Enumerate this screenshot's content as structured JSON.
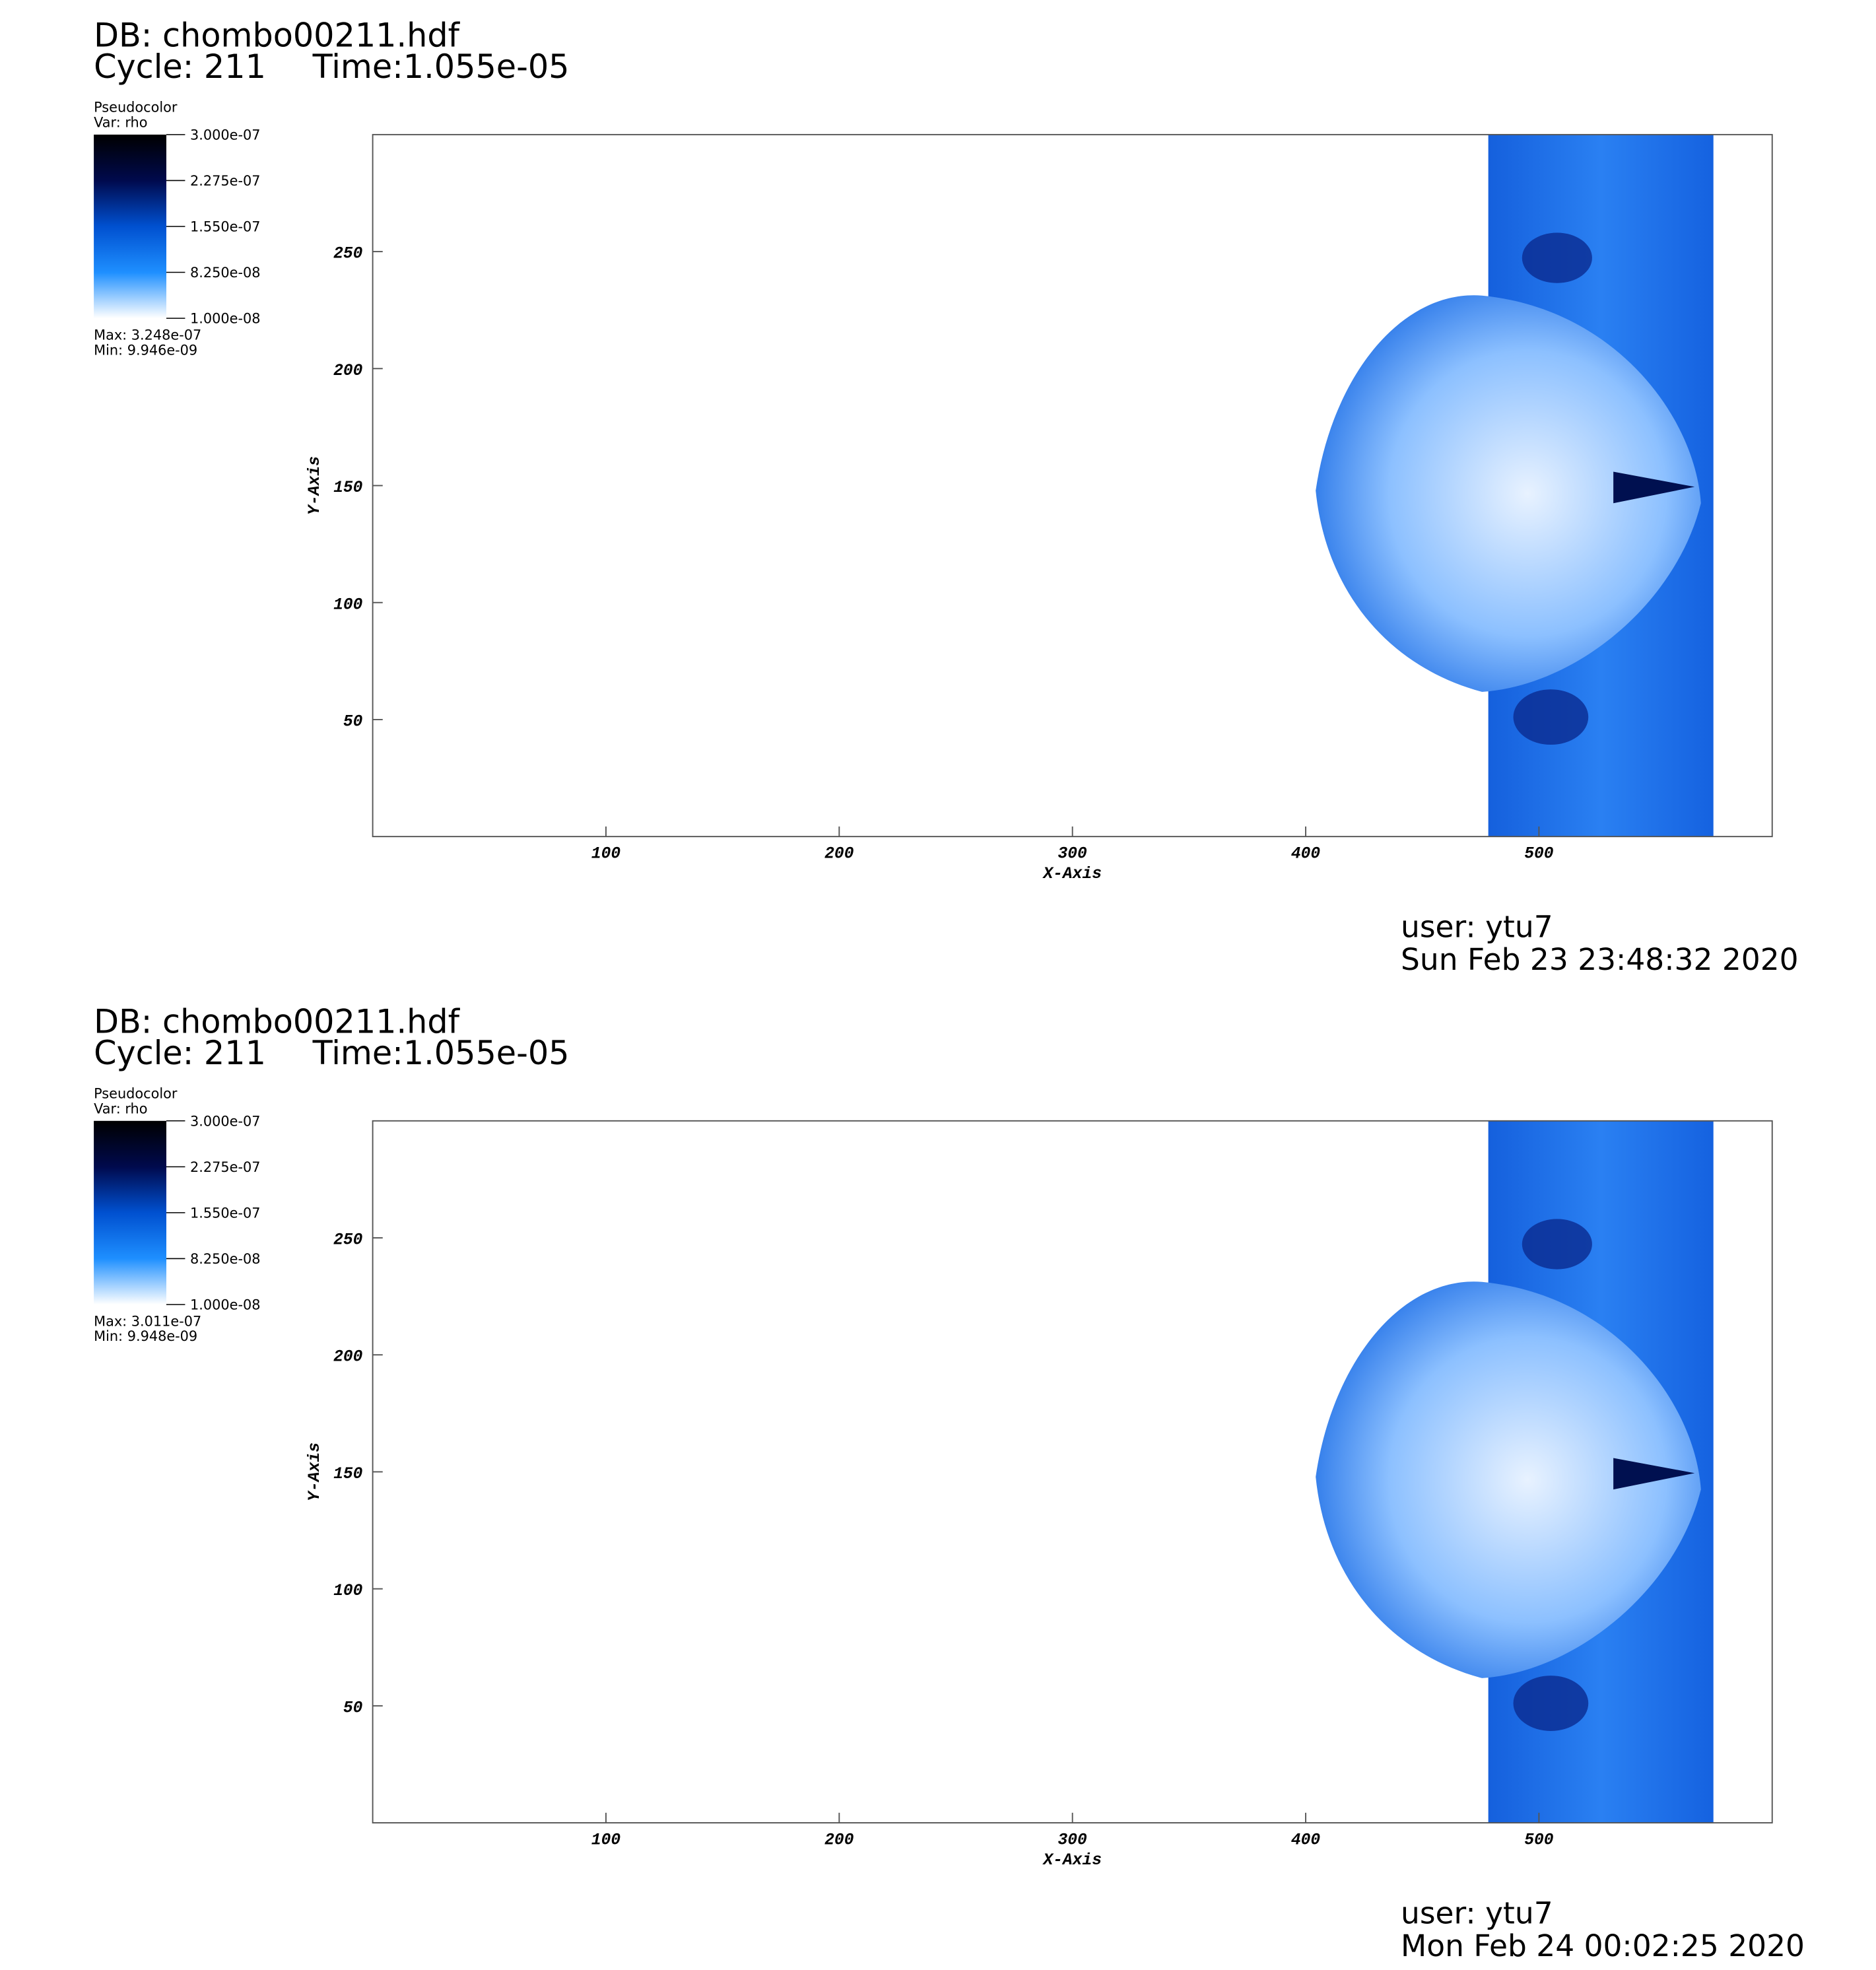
{
  "chart_data": [
    {
      "type": "pseudocolor",
      "database": "DB: chombo00211.hdf",
      "cycle": "Cycle: 211",
      "time": "Time:1.055e-05",
      "legend_title": "Pseudocolor",
      "variable": "Var: rho",
      "colormap": [
        "#000000",
        "#000a4d",
        "#0050d0",
        "#1e8fff",
        "#ffffff"
      ],
      "colorbar_lim": [
        1e-08,
        3e-07
      ],
      "colorbar_ticks": [
        {
          "value": 3e-07,
          "label": "3.000e-07"
        },
        {
          "value": 2.275e-07,
          "label": "2.275e-07"
        },
        {
          "value": 1.55e-07,
          "label": "1.550e-07"
        },
        {
          "value": 8.25e-08,
          "label": "8.250e-08"
        },
        {
          "value": 1e-08,
          "label": "1.000e-08"
        }
      ],
      "max_label": "Max:  3.248e-07",
      "min_label": "Min:  9.946e-09",
      "xlabel": "X-Axis",
      "ylabel": "Y-Axis",
      "xlim": [
        0,
        600
      ],
      "ylim": [
        0,
        300
      ],
      "xticks": [
        100,
        200,
        300,
        400,
        500
      ],
      "yticks": [
        50,
        100,
        150,
        200,
        250
      ],
      "user": "user: ytu7",
      "date": "Sun Feb 23 23:48:32 2020"
    },
    {
      "type": "pseudocolor",
      "database": "DB: chombo00211.hdf",
      "cycle": "Cycle: 211",
      "time": "Time:1.055e-05",
      "legend_title": "Pseudocolor",
      "variable": "Var: rho",
      "colormap": [
        "#000000",
        "#000a4d",
        "#0050d0",
        "#1e8fff",
        "#ffffff"
      ],
      "colorbar_lim": [
        1e-08,
        3e-07
      ],
      "colorbar_ticks": [
        {
          "value": 3e-07,
          "label": "3.000e-07"
        },
        {
          "value": 2.275e-07,
          "label": "2.275e-07"
        },
        {
          "value": 1.55e-07,
          "label": "1.550e-07"
        },
        {
          "value": 8.25e-08,
          "label": "8.250e-08"
        },
        {
          "value": 1e-08,
          "label": "1.000e-08"
        }
      ],
      "max_label": "Max:  3.011e-07",
      "min_label": "Min:  9.948e-09",
      "xlabel": "X-Axis",
      "ylabel": "Y-Axis",
      "xlim": [
        0,
        600
      ],
      "ylim": [
        0,
        300
      ],
      "xticks": [
        100,
        200,
        300,
        400,
        500
      ],
      "yticks": [
        50,
        100,
        150,
        200,
        250
      ],
      "user": "user: ytu7",
      "date": "Mon Feb 24 00:02:25 2020"
    }
  ]
}
